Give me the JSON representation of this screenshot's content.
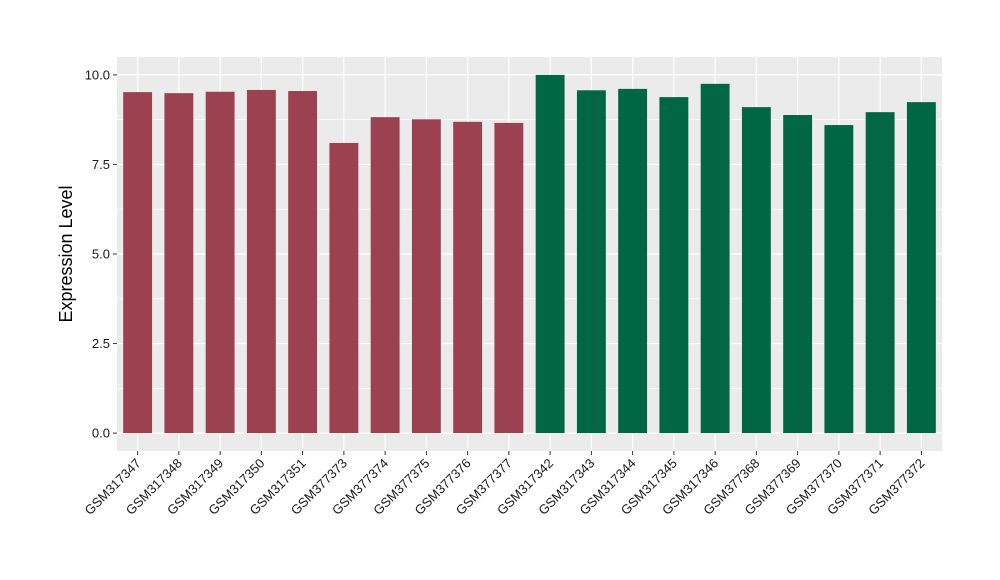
{
  "chart_data": {
    "type": "bar",
    "title": "",
    "xlabel": "",
    "ylabel": "Expression Level",
    "ylim": [
      -0.5,
      10.5
    ],
    "yticks": [
      "0.0",
      "2.5",
      "5.0",
      "7.5",
      "10.0"
    ],
    "grid": true,
    "categories": [
      "GSM317347",
      "GSM317348",
      "GSM317349",
      "GSM317350",
      "GSM317351",
      "GSM377373",
      "GSM377374",
      "GSM377375",
      "GSM377376",
      "GSM377377",
      "GSM317342",
      "GSM317343",
      "GSM317344",
      "GSM317345",
      "GSM317346",
      "GSM377368",
      "GSM377369",
      "GSM377370",
      "GSM377371",
      "GSM377372"
    ],
    "values": [
      9.52,
      9.49,
      9.53,
      9.58,
      9.55,
      8.1,
      8.82,
      8.76,
      8.69,
      8.66,
      10.0,
      9.57,
      9.61,
      9.38,
      9.75,
      9.1,
      8.88,
      8.6,
      8.96,
      9.24
    ],
    "colors": [
      "#9b4150",
      "#9b4150",
      "#9b4150",
      "#9b4150",
      "#9b4150",
      "#9b4150",
      "#9b4150",
      "#9b4150",
      "#9b4150",
      "#9b4150",
      "#006643",
      "#006643",
      "#006643",
      "#006643",
      "#006643",
      "#006643",
      "#006643",
      "#006643",
      "#006643",
      "#006643"
    ],
    "panel_background": "#ebebeb",
    "gridline_color": "#ffffff"
  }
}
